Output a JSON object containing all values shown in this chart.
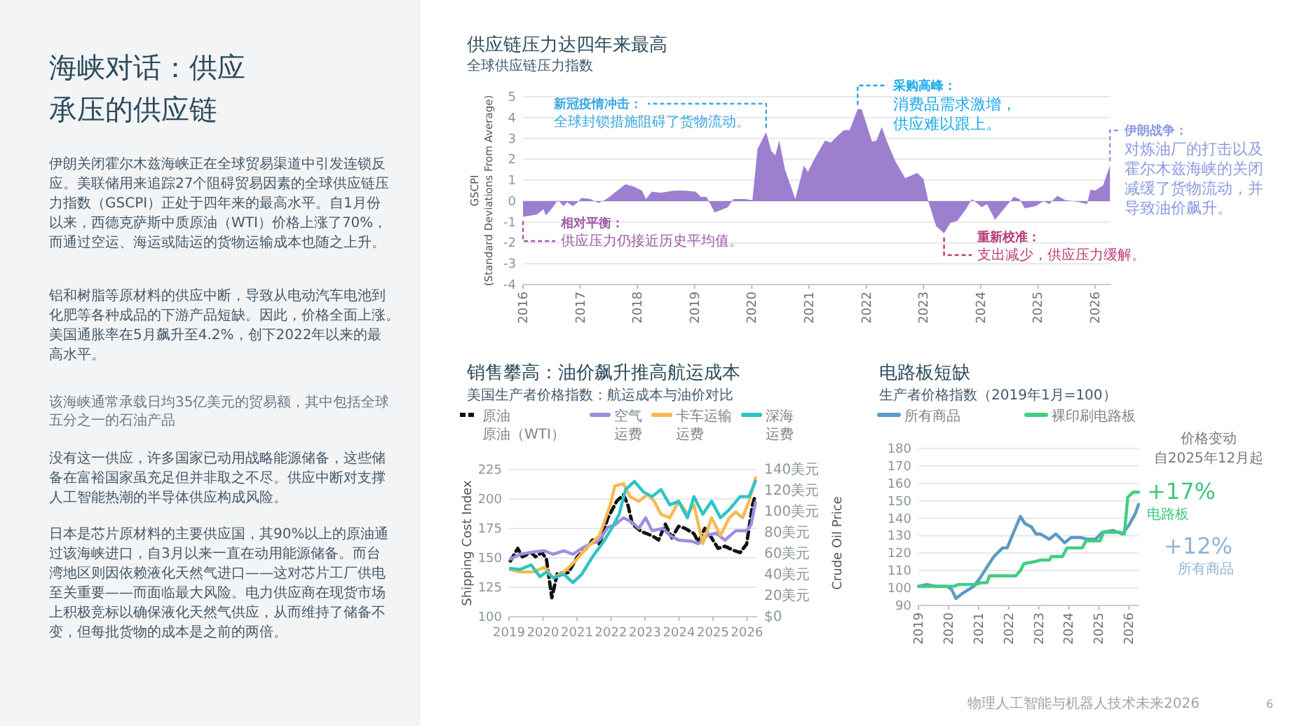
{
  "chart_data": [
    {
      "type": "other",
      "title": "海峡对话：供应承压的供应链",
      "annotations": [
        "伊朗关闭霍尔木兹海峡正在全球贸易渠道中引发连锁反应。美联储用来追踪27个阻碍贸易因素的全球供应链压力指数（GSCPI）正处于四年来的最高水平。自1月份以来，西德克萨斯中质原油（WTI）价格上涨了70%，而通过空运、海运或陆运的货物运输成本也随之上升。",
        "铝和树脂等原材料的供应中断，导致从电动汽车电池到化肥等各种成品的下游产品短缺。因此，价格全面上涨。美国通胀率在5月飙升至4.2%，创下2022年以来的最高水平。",
        "该海峡通常承载日均35亿美元的贸易额，其中包括全球五分之一的石油产品",
        "没有这一供应，许多国家已动用战略能源储备，这些储备在富裕国家虽充足但并非取之不尽。供应中断对支撑人工智能热潮的半导体供应构成风险。",
        "日本是芯片原材料的主要供应国，其90%以上的原油通过该海峡进口，自3月以来一直在动用能源储备。而台湾地区则因依赖液化天然气进口——这对芯片工厂供电至关重要——而面临最大风险。电力供应商在现货市场上积极竞标以确保液化天然气供应，从而维持了储备不变，但每批货物的成本是之前的两倍。",
        "物理人工智能与机器人技术未来2026",
        "6"
      ]
    },
    {
      "type": "area",
      "title": "供应链压力达四年来最高",
      "subtitle": "全球供应链压力指数",
      "ylabel": "GSCPI\n(Standard Deviations From Average)",
      "xlim": [
        2016,
        2026.27
      ],
      "xticks": [
        2016,
        2017,
        2018,
        2019,
        2020,
        2021,
        2022,
        2023,
        2024,
        2025,
        2026
      ],
      "ylim": [
        -4,
        5
      ],
      "yticks": [
        -4,
        -3,
        -2,
        -1,
        0,
        1,
        2,
        3,
        4,
        5
      ],
      "grid": "y",
      "series": [
        {
          "color": "#9d7fd0",
          "x": [
            2016.0,
            2016.24,
            2016.36,
            2016.4,
            2016.52,
            2016.61,
            2016.71,
            2016.77,
            2016.87,
            2016.94,
            2017.02,
            2017.18,
            2017.32,
            2017.46,
            2017.6,
            2017.79,
            2017.93,
            2018.08,
            2018.15,
            2018.25,
            2018.41,
            2018.64,
            2018.83,
            2019.02,
            2019.11,
            2019.21,
            2019.35,
            2019.49,
            2019.58,
            2019.68,
            2019.87,
            2020.01,
            2020.1,
            2020.25,
            2020.34,
            2020.41,
            2020.48,
            2020.58,
            2020.76,
            2020.91,
            2020.98,
            2021.09,
            2021.28,
            2021.38,
            2021.49,
            2021.61,
            2021.71,
            2021.85,
            2021.92,
            2022.1,
            2022.18,
            2022.27,
            2022.37,
            2022.51,
            2022.68,
            2022.89,
            2023.0,
            2023.09,
            2023.22,
            2023.36,
            2023.47,
            2023.59,
            2023.74,
            2023.85,
            2024.02,
            2024.11,
            2024.25,
            2024.58,
            2024.68,
            2024.77,
            2024.96,
            2025.1,
            2025.2,
            2025.34,
            2025.48,
            2025.72,
            2025.86,
            2025.92,
            2026.0,
            2026.14,
            2026.26
          ],
          "values": [
            -0.75,
            -0.65,
            -0.4,
            -0.7,
            -0.3,
            0.05,
            -0.25,
            -0.05,
            -0.25,
            -0.1,
            0.15,
            0.1,
            -0.1,
            0.1,
            0.4,
            0.8,
            0.7,
            0.5,
            0.1,
            0.45,
            0.4,
            0.5,
            0.5,
            0.45,
            0.2,
            0.2,
            -0.55,
            -0.4,
            -0.3,
            0.1,
            0.1,
            0.05,
            2.5,
            3.3,
            2.4,
            2.2,
            2.9,
            1.5,
            0.1,
            1.7,
            1.4,
            2.0,
            2.9,
            2.8,
            3.1,
            3.4,
            3.4,
            4.4,
            4.4,
            2.85,
            2.9,
            3.55,
            2.8,
            1.9,
            1.1,
            1.35,
            1.05,
            -0.05,
            -1.2,
            -1.55,
            -1.05,
            -0.95,
            -0.4,
            0.1,
            -0.3,
            -0.15,
            -0.9,
            0.2,
            0.1,
            -0.35,
            -0.25,
            0.0,
            -0.15,
            0.25,
            0.05,
            -0.05,
            -0.15,
            0.55,
            0.5,
            0.75,
            1.7
          ]
        }
      ],
      "annotations": [
        {
          "text": "新冠疫情冲击：",
          "x": 2020.25,
          "y": 3.3
        },
        {
          "text": "全球封锁措施阻碍了货物流动。",
          "x": 2020.25,
          "y": 3.3
        },
        {
          "text": "采购高峰：",
          "x": 2021.85,
          "y": 4.4
        },
        {
          "text": "消费品需求激增，供应难以跟上。",
          "x": 2021.85,
          "y": 4.4
        },
        {
          "text": "伊朗战争：",
          "x": 2026.26,
          "y": 1.7
        },
        {
          "text": "对炼油厂的打击以及霍尔木兹海峡的关闭减缓了货物流动，并导致油价飙升。",
          "x": 2026.26,
          "y": 1.7
        },
        {
          "text": "相对平衡：",
          "x": 2016.0,
          "y": -0.75
        },
        {
          "text": "供应压力仍接近历史平均值。",
          "x": 2016.0,
          "y": -0.75
        },
        {
          "text": "重新校准：",
          "x": 2023.36,
          "y": -1.55
        },
        {
          "text": "支出减少，供应压力缓解。",
          "x": 2023.36,
          "y": -1.55
        }
      ]
    },
    {
      "type": "line",
      "title": "销售攀高：油价飙升推高航运成本",
      "subtitle": "美国生产者价格指数：航运成本与油价对比",
      "ylabel": "Shipping Cost Index",
      "y2label": "Crude Oil Price",
      "xlim": [
        2019,
        2026.3
      ],
      "xticks": [
        2019,
        2020,
        2021,
        2022,
        2023,
        2024,
        2025,
        2026
      ],
      "ylim": [
        100,
        225
      ],
      "yticks": [
        100,
        125,
        150,
        175,
        200,
        225
      ],
      "y2lim": [
        0,
        140
      ],
      "y2ticks": [
        {
          "value": 0,
          "label": "$0"
        },
        {
          "value": 20,
          "label": "20美元"
        },
        {
          "value": 40,
          "label": "40美元"
        },
        {
          "value": 60,
          "label": "60美元"
        },
        {
          "value": 80,
          "label": "80美元"
        },
        {
          "value": 100,
          "label": "100美元"
        },
        {
          "value": 120,
          "label": "120美元"
        },
        {
          "value": 140,
          "label": "140美元"
        }
      ],
      "grid": "y",
      "legend": "top",
      "marker": "none",
      "series": [
        {
          "name": "原油原油（WTI）",
          "color": "#111111",
          "axis": "y2",
          "line_style": "dashed",
          "x": [
            2019.04,
            2019.26,
            2019.39,
            2019.65,
            2019.78,
            2019.97,
            2020.1,
            2020.26,
            2020.42,
            2020.75,
            2021.01,
            2021.27,
            2021.46,
            2021.66,
            2021.91,
            2022.17,
            2022.37,
            2022.5,
            2022.63,
            2022.89,
            2023.21,
            2023.4,
            2023.6,
            2023.79,
            2023.99,
            2024.18,
            2024.44,
            2024.57,
            2024.76,
            2024.96,
            2025.15,
            2025.35,
            2025.61,
            2025.8,
            2025.99,
            2026.16,
            2026.25
          ],
          "values": [
            53,
            65,
            57,
            61,
            57,
            61,
            55,
            18,
            41,
            42,
            57,
            65,
            73,
            69,
            94,
            110,
            116,
            106,
            88,
            81,
            77,
            73,
            88,
            75,
            86,
            84,
            79,
            71,
            84,
            75,
            65,
            67,
            63,
            61,
            69,
            106,
            116
          ]
        },
        {
          "name": "空气运费",
          "color": "#9b8fe0",
          "x": [
            2019.04,
            2019.32,
            2019.71,
            2020.04,
            2020.3,
            2020.62,
            2020.88,
            2021.14,
            2021.4,
            2021.66,
            2021.91,
            2022.11,
            2022.37,
            2022.63,
            2022.82,
            2023.02,
            2023.21,
            2023.53,
            2023.73,
            2023.99,
            2024.38,
            2024.57,
            2024.83,
            2025.09,
            2025.35,
            2025.67,
            2025.99,
            2026.12,
            2026.25
          ],
          "values": [
            149,
            153,
            155,
            156,
            153,
            156,
            153,
            158,
            162,
            165,
            176,
            178,
            184,
            180,
            175,
            184,
            173,
            175,
            169,
            165,
            164,
            162,
            169,
            171,
            165,
            173,
            173,
            178,
            197
          ]
        },
        {
          "name": "卡车运输运费",
          "color": "#f7b955",
          "x": [
            2019.04,
            2019.32,
            2019.71,
            2020.04,
            2020.3,
            2020.62,
            2020.94,
            2021.27,
            2021.66,
            2021.98,
            2022.11,
            2022.37,
            2022.56,
            2022.82,
            2023.08,
            2023.27,
            2023.47,
            2023.73,
            2023.99,
            2024.25,
            2024.44,
            2024.7,
            2024.96,
            2025.22,
            2025.48,
            2025.67,
            2025.87,
            2026.06,
            2026.25
          ],
          "values": [
            140,
            138,
            138,
            142,
            133,
            138,
            147,
            158,
            169,
            195,
            211,
            213,
            202,
            198,
            204,
            198,
            187,
            184,
            198,
            187,
            195,
            162,
            184,
            169,
            184,
            189,
            184,
            198,
            218
          ]
        },
        {
          "name": "深海运费",
          "color": "#2ec4c4",
          "x": [
            2019.04,
            2019.32,
            2019.65,
            2019.91,
            2020.1,
            2020.3,
            2020.62,
            2020.88,
            2021.14,
            2021.46,
            2021.79,
            2022.04,
            2022.24,
            2022.43,
            2022.69,
            2022.95,
            2023.21,
            2023.47,
            2023.73,
            2023.99,
            2024.25,
            2024.44,
            2024.7,
            2024.96,
            2025.22,
            2025.48,
            2025.8,
            2026.06,
            2026.25
          ],
          "values": [
            141,
            140,
            144,
            134,
            138,
            133,
            136,
            129,
            136,
            151,
            164,
            176,
            187,
            208,
            215,
            206,
            202,
            208,
            195,
            198,
            184,
            202,
            187,
            198,
            184,
            191,
            202,
            202,
            215
          ]
        }
      ]
    },
    {
      "type": "line",
      "title": "电路板短缺",
      "subtitle": "生产者价格指数（2019年1月=100）",
      "xlim": [
        2019,
        2026.32
      ],
      "xticks": [
        2019,
        2020,
        2021,
        2022,
        2023,
        2024,
        2025,
        2026
      ],
      "ylim": [
        90,
        180
      ],
      "yticks": [
        90,
        100,
        110,
        120,
        130,
        140,
        150,
        160,
        170,
        180
      ],
      "grid": "y",
      "legend": "top",
      "marker": "none",
      "series": [
        {
          "name": "所有商品",
          "color": "#5a9bc4",
          "x": [
            2019.0,
            2019.27,
            2019.59,
            2019.96,
            2020.11,
            2020.25,
            2020.47,
            2020.84,
            2021.06,
            2021.28,
            2021.51,
            2021.8,
            2021.95,
            2022.24,
            2022.39,
            2022.54,
            2022.76,
            2022.91,
            2023.05,
            2023.35,
            2023.57,
            2023.86,
            2024.08,
            2024.38,
            2024.6,
            2024.89,
            2025.12,
            2025.48,
            2025.78,
            2026.0,
            2026.22,
            2026.32
          ],
          "values": [
            101,
            102,
            101,
            101,
            99,
            94,
            97,
            101,
            106,
            112,
            118,
            123,
            123,
            135,
            141,
            137,
            135,
            131,
            131,
            128,
            131,
            126,
            129,
            129,
            128,
            128,
            132,
            133,
            131,
            136,
            143,
            148
          ]
        },
        {
          "name": "裸印刷电路板",
          "color": "#3ecf7f",
          "x": [
            2019.0,
            2019.29,
            2020.18,
            2020.33,
            2020.92,
            2021.06,
            2021.28,
            2021.36,
            2022.24,
            2022.39,
            2022.51,
            2022.83,
            2023.05,
            2023.35,
            2023.42,
            2023.79,
            2023.94,
            2024.45,
            2024.57,
            2025.04,
            2025.16,
            2025.7,
            2025.85,
            2025.96,
            2026.15,
            2026.32
          ],
          "values": [
            101,
            101,
            101,
            102,
            102,
            103,
            103,
            107,
            107,
            110,
            114,
            115,
            116,
            116,
            118,
            118,
            123,
            123,
            127,
            127,
            132,
            132,
            131,
            152,
            155,
            155
          ]
        }
      ],
      "annotations": [
        "价格变动",
        "自2025年12月起",
        "+17%",
        "电路板",
        "+12%",
        "所有商品"
      ]
    }
  ]
}
